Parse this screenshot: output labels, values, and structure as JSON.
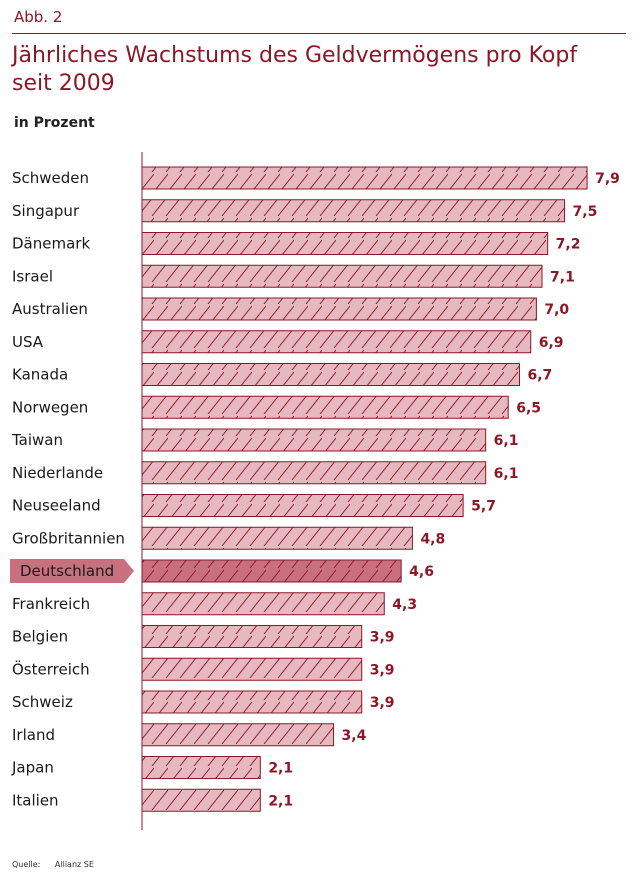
{
  "figure_label": "Abb. 2",
  "source_label": "Quelle:",
  "source_value": "Allianz SE",
  "colors": {
    "accent": "#8c1727",
    "bar_fill": "#e6b8bf",
    "bar_highlight": "#c9707e",
    "bar_stroke": "#8c1727"
  },
  "chart_data": {
    "type": "bar",
    "orientation": "horizontal",
    "title": "Jährliches Wachstums des Geldvermögens pro Kopf seit 2009",
    "subtitle": "in Prozent",
    "xlabel": "",
    "ylabel": "",
    "xlim": [
      0,
      8.2
    ],
    "highlight": "Deutschland",
    "categories": [
      "Schweden",
      "Singapur",
      "Dänemark",
      "Israel",
      "Australien",
      "USA",
      "Kanada",
      "Norwegen",
      "Taiwan",
      "Niederlande",
      "Neuseeland",
      "Großbritannien",
      "Deutschland",
      "Frankreich",
      "Belgien",
      "Österreich",
      "Schweiz",
      "Irland",
      "Japan",
      "Italien"
    ],
    "values": [
      7.9,
      7.5,
      7.2,
      7.1,
      7.0,
      6.9,
      6.7,
      6.5,
      6.1,
      6.1,
      5.7,
      4.8,
      4.6,
      4.3,
      3.9,
      3.9,
      3.9,
      3.4,
      2.1,
      2.1
    ],
    "value_labels": [
      "7,9",
      "7,5",
      "7,2",
      "7,1",
      "7,0",
      "6,9",
      "6,7",
      "6,5",
      "6,1",
      "6,1",
      "5,7",
      "4,8",
      "4,6",
      "4,3",
      "3,9",
      "3,9",
      "3,9",
      "3,4",
      "2,1",
      "2,1"
    ]
  }
}
